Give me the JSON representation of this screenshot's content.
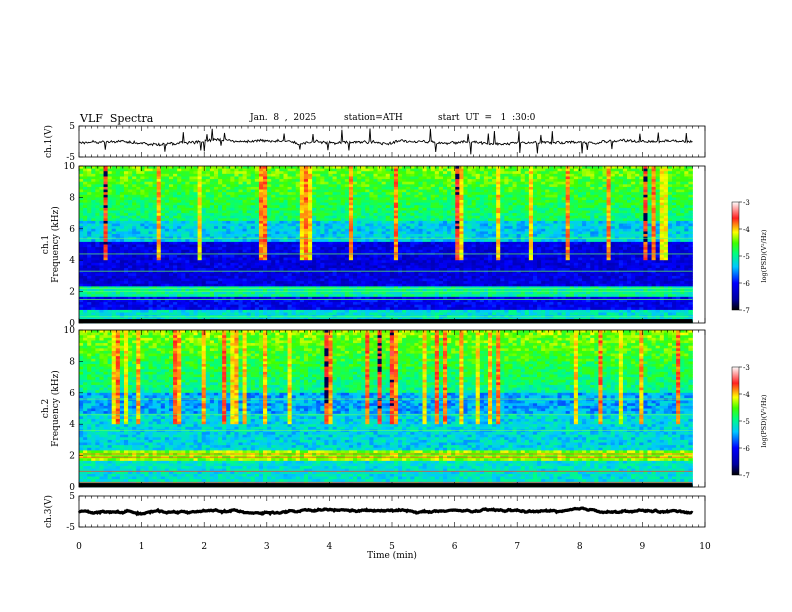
{
  "header": {
    "title": "VLF  Spectra",
    "date": "Jan.  8  ,  2025",
    "station": "station=ATH",
    "start_ut": "start  UT  =   1  :30:0"
  },
  "chart_data": [
    {
      "type": "line",
      "ylabel": "ch.1(V)",
      "ylim": [
        -5,
        5
      ],
      "yticks": [
        "5",
        "-5"
      ],
      "baseline": -0.2
    },
    {
      "type": "heatmap",
      "ylabel": "ch.1\nFrequency  (kHz)",
      "ylim": [
        0,
        10
      ],
      "yticks": [
        "10",
        "8",
        "6",
        "4",
        "2",
        "0"
      ],
      "colorbar": {
        "label": "log(PSD)(V²/Hz)",
        "range": [
          -7,
          -3
        ],
        "ticks": [
          "-3",
          "-4",
          "-5",
          "-6",
          "-7"
        ]
      }
    },
    {
      "type": "heatmap",
      "ylabel": "ch.2\nFrequency  (kHz)",
      "ylim": [
        0,
        10
      ],
      "yticks": [
        "10",
        "8",
        "6",
        "4",
        "2",
        "0"
      ],
      "colorbar": {
        "label": "log(PSD)(V²/Hz)",
        "range": [
          -7,
          -3
        ],
        "ticks": [
          "-3",
          "-4",
          "-5",
          "-6",
          "-7"
        ]
      }
    },
    {
      "type": "line",
      "ylabel": "ch.3(V)",
      "ylim": [
        -5,
        5
      ],
      "yticks": [
        "5",
        "-5"
      ],
      "baseline": 0
    }
  ],
  "xaxis": {
    "label": "Time  (min)",
    "xlim": [
      0,
      10
    ],
    "ticks": [
      "0",
      "1",
      "2",
      "3",
      "4",
      "5",
      "6",
      "7",
      "8",
      "9",
      "10"
    ],
    "data_end": 9.8
  },
  "colors": {
    "frame": "#000000",
    "background": "#ffffff"
  }
}
